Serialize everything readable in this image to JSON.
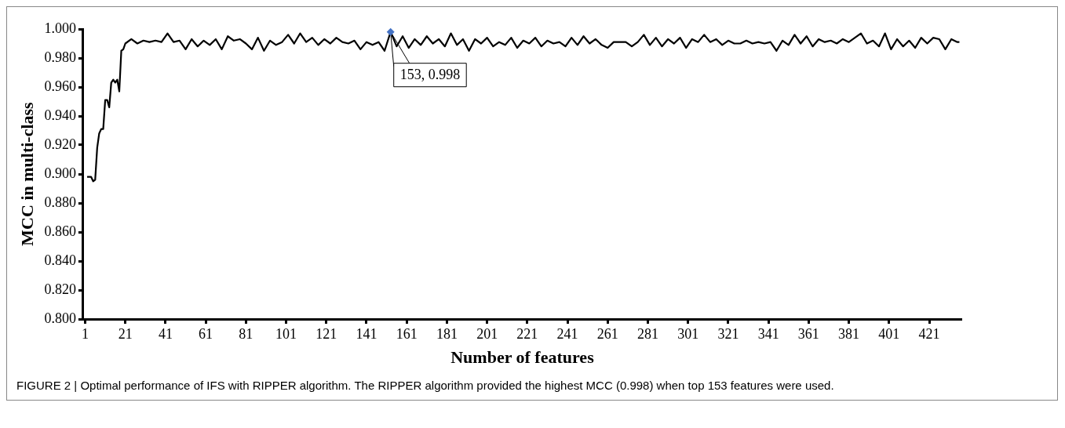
{
  "chart_data": {
    "type": "line",
    "xlabel": "Number of features",
    "ylabel": "MCC in multi-class",
    "xlim": [
      0,
      437
    ],
    "xticks": [
      1,
      21,
      41,
      61,
      81,
      101,
      121,
      141,
      161,
      181,
      201,
      221,
      241,
      261,
      281,
      301,
      321,
      341,
      361,
      381,
      401,
      421
    ],
    "ylim": [
      0.8,
      1.0
    ],
    "yticks": [
      {
        "value": 0.8,
        "label": "0.800"
      },
      {
        "value": 0.82,
        "label": "0.820"
      },
      {
        "value": 0.84,
        "label": "0.840"
      },
      {
        "value": 0.86,
        "label": "0.860"
      },
      {
        "value": 0.88,
        "label": "0.880"
      },
      {
        "value": 0.9,
        "label": "0.900"
      },
      {
        "value": 0.92,
        "label": "0.920"
      },
      {
        "value": 0.94,
        "label": "0.940"
      },
      {
        "value": 0.96,
        "label": "0.960"
      },
      {
        "value": 0.98,
        "label": "0.980"
      },
      {
        "value": 1.0,
        "label": "1.000"
      }
    ],
    "grid": false,
    "legend": false,
    "marker": "none",
    "series": [
      {
        "color": "#000000",
        "x": [
          2,
          3,
          4,
          5,
          6,
          7,
          8,
          9,
          10,
          11,
          12,
          13,
          14,
          15,
          16,
          17,
          18,
          19,
          20,
          21,
          24,
          27,
          30,
          33,
          36,
          39,
          42,
          45,
          48,
          51,
          54,
          57,
          60,
          63,
          66,
          69,
          72,
          75,
          78,
          81,
          84,
          87,
          90,
          93,
          96,
          99,
          102,
          105,
          108,
          111,
          114,
          117,
          120,
          123,
          126,
          129,
          132,
          135,
          138,
          141,
          144,
          147,
          150,
          153,
          156,
          159,
          162,
          165,
          168,
          171,
          174,
          177,
          180,
          183,
          186,
          189,
          192,
          195,
          198,
          201,
          204,
          207,
          210,
          213,
          216,
          219,
          222,
          225,
          228,
          231,
          234,
          237,
          240,
          243,
          246,
          249,
          252,
          255,
          258,
          261,
          264,
          267,
          270,
          273,
          276,
          279,
          282,
          285,
          288,
          291,
          294,
          297,
          300,
          303,
          306,
          309,
          312,
          315,
          318,
          321,
          324,
          327,
          330,
          333,
          336,
          339,
          342,
          345,
          348,
          351,
          354,
          357,
          360,
          363,
          366,
          369,
          372,
          375,
          378,
          381,
          384,
          387,
          390,
          393,
          396,
          399,
          402,
          405,
          408,
          411,
          414,
          417,
          420,
          423,
          426,
          429,
          432,
          435,
          436
        ],
        "values": [
          0.898,
          0.898,
          0.898,
          0.895,
          0.896,
          0.918,
          0.928,
          0.931,
          0.931,
          0.951,
          0.951,
          0.946,
          0.963,
          0.965,
          0.963,
          0.965,
          0.957,
          0.985,
          0.986,
          0.99,
          0.993,
          0.99,
          0.992,
          0.991,
          0.992,
          0.991,
          0.997,
          0.991,
          0.992,
          0.986,
          0.993,
          0.988,
          0.992,
          0.989,
          0.993,
          0.986,
          0.995,
          0.992,
          0.993,
          0.99,
          0.986,
          0.994,
          0.985,
          0.992,
          0.989,
          0.991,
          0.996,
          0.99,
          0.997,
          0.991,
          0.994,
          0.989,
          0.993,
          0.99,
          0.994,
          0.991,
          0.99,
          0.992,
          0.986,
          0.991,
          0.989,
          0.991,
          0.985,
          0.998,
          0.988,
          0.995,
          0.987,
          0.993,
          0.989,
          0.995,
          0.99,
          0.993,
          0.988,
          0.997,
          0.989,
          0.993,
          0.985,
          0.993,
          0.99,
          0.994,
          0.988,
          0.991,
          0.989,
          0.994,
          0.987,
          0.992,
          0.99,
          0.994,
          0.988,
          0.992,
          0.99,
          0.991,
          0.988,
          0.994,
          0.989,
          0.995,
          0.99,
          0.993,
          0.989,
          0.987,
          0.991,
          0.991,
          0.991,
          0.988,
          0.991,
          0.996,
          0.989,
          0.994,
          0.988,
          0.993,
          0.99,
          0.994,
          0.987,
          0.993,
          0.991,
          0.996,
          0.991,
          0.993,
          0.989,
          0.992,
          0.99,
          0.99,
          0.992,
          0.99,
          0.991,
          0.99,
          0.991,
          0.985,
          0.992,
          0.989,
          0.996,
          0.99,
          0.995,
          0.988,
          0.993,
          0.991,
          0.992,
          0.99,
          0.993,
          0.991,
          0.994,
          0.997,
          0.99,
          0.992,
          0.988,
          0.997,
          0.986,
          0.993,
          0.988,
          0.992,
          0.987,
          0.994,
          0.99,
          0.994,
          0.993,
          0.986,
          0.993,
          0.991,
          0.991
        ]
      }
    ],
    "annotations": [
      {
        "text": "153, 0.998",
        "x": 153,
        "y": 0.998
      },
      "FIGURE 2 | Optimal performance of IFS with RIPPER algorithm. The RIPPER algorithm provided the highest MCC (0.998) when top 153 features were used."
    ]
  }
}
